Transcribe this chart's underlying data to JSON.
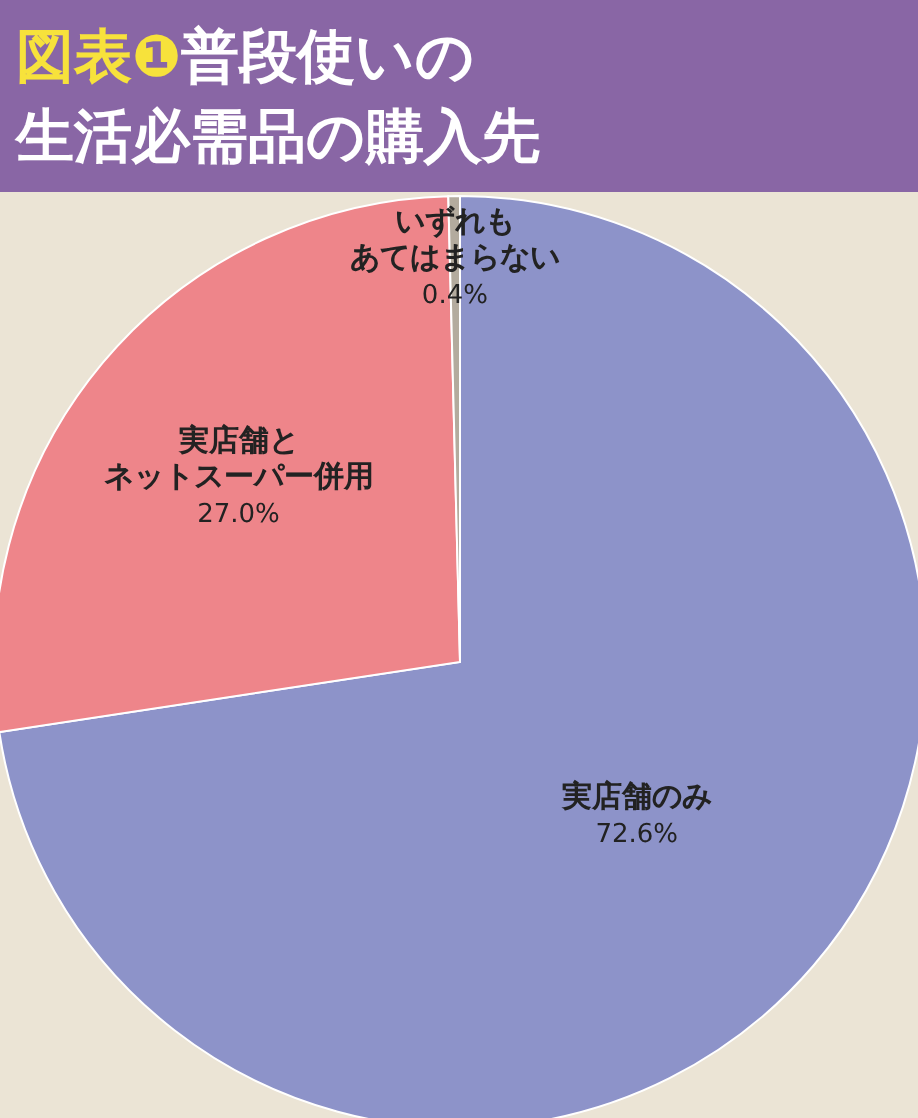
{
  "chart_data": {
    "type": "pie",
    "title": "図表❶普段使いの生活必需品の購入先",
    "categories": [
      "実店舗のみ",
      "実店舗とネットスーパー併用",
      "いずれもあてはまらない"
    ],
    "values": [
      72.6,
      27.0,
      0.4
    ],
    "value_labels": [
      "72.6%",
      "27.0%",
      "0.4%"
    ],
    "colors": [
      "#8d93c9",
      "#ee858a",
      "#b3ab9e"
    ]
  }
}
